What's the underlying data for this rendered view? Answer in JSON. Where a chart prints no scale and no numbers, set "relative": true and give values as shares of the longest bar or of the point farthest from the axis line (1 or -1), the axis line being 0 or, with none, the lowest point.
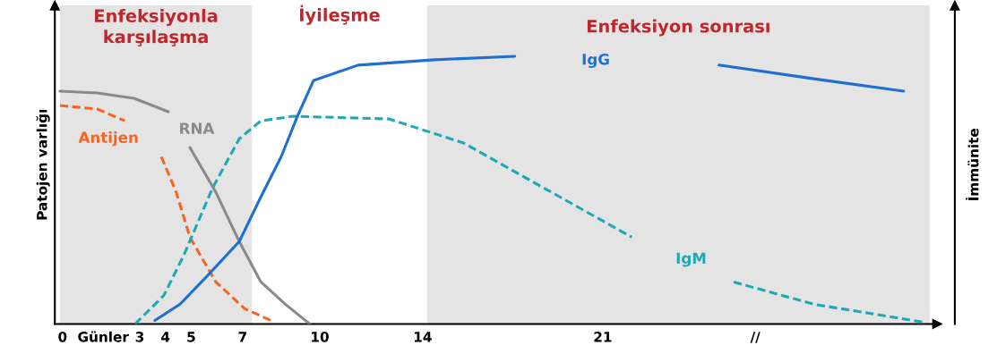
{
  "chart_data": {
    "type": "line",
    "relative": true,
    "ylabel": "Patojen varlığı",
    "y2label": "İmmünite",
    "xlim": [
      -0.3,
      34
    ],
    "xticks": [
      0,
      {
        "value": 1.58,
        "label": "Günler"
      },
      3,
      4,
      5,
      7,
      10,
      14,
      21,
      {
        "value": 26.93,
        "label": "//"
      }
    ],
    "tick_labels": "x",
    "grid": false,
    "legend": false,
    "marker": "none",
    "bands": [
      {
        "axis": "x",
        "from": -0.1,
        "to": 7.36,
        "label": "Enfeksiyonla\nkarşılaşma",
        "color": "#e4e4e4"
      },
      {
        "axis": "x",
        "from": 14.17,
        "to": 33.71,
        "label": "Enfeksiyon sonrası",
        "color": "#e4e4e4"
      }
    ],
    "annotations": [
      "İyileşme"
    ],
    "series": [
      {
        "name": "RNA",
        "color": "#8a8a8a",
        "line_style": "solid",
        "x": [
          -0.1,
          1.35,
          2.78,
          4.11,
          4.52,
          4.95,
          5.96,
          6.87,
          7.71,
          8.66,
          9.61
        ],
        "values": [
          0.87,
          0.863,
          0.843,
          0.793,
          null,
          0.659,
          0.492,
          0.308,
          0.157,
          0.074,
          0
        ]
      },
      {
        "name": "Antijen",
        "color": "#f26522",
        "line_style": "dashed",
        "x": [
          -0.1,
          1.35,
          2.42,
          2.96,
          3.84,
          4.42,
          4.95,
          5.96,
          7.08,
          8.11
        ],
        "values": [
          0.816,
          0.803,
          0.759,
          null,
          0.625,
          0.492,
          0.324,
          0.157,
          0.057,
          0.013
        ]
      },
      {
        "name": "IgM",
        "color": "#1fa8b5",
        "line_style": "dashed",
        "x": [
          2.82,
          3.94,
          4.72,
          5.83,
          6.87,
          7.71,
          8.97,
          12.69,
          15.59,
          19.01,
          22.13,
          23.83,
          26.09,
          29.2,
          33.43
        ],
        "values": [
          0,
          0.107,
          0.258,
          0.508,
          0.692,
          0.759,
          0.776,
          0.766,
          0.676,
          0.492,
          0.324,
          null,
          0.157,
          0.074,
          0.007
        ]
      },
      {
        "name": "IgG",
        "color": "#1f6fd1",
        "line_style": "solid",
        "x": [
          3.59,
          4.57,
          5.57,
          6.87,
          7.71,
          8.5,
          9.13,
          9.76,
          11.49,
          14.46,
          17.58,
          21.28,
          25.52,
          29.2,
          32.7
        ],
        "values": [
          0.013,
          0.074,
          0.174,
          0.308,
          0.475,
          0.625,
          0.776,
          0.91,
          0.967,
          0.987,
          1,
          null,
          0.967,
          0.916,
          0.87
        ]
      }
    ]
  }
}
